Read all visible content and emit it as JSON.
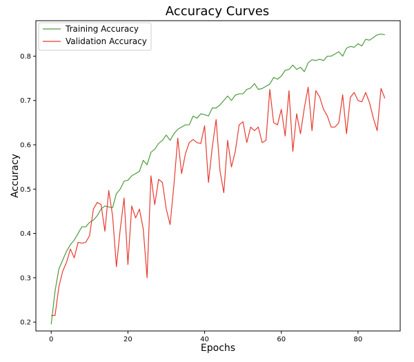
{
  "chart_data": {
    "type": "line",
    "title": "Accuracy Curves",
    "xlabel": "Epochs",
    "ylabel": "Accuracy",
    "xlim": [
      -4,
      91
    ],
    "ylim": [
      0.18,
      0.88
    ],
    "x_ticks": [
      0,
      20,
      40,
      60,
      80
    ],
    "y_ticks": [
      0.2,
      0.3,
      0.4,
      0.5,
      0.6,
      0.7,
      0.8
    ],
    "grid": false,
    "legend_position": "top-left",
    "series": [
      {
        "name": "Training Accuracy",
        "color": "#4c9a3c",
        "x": [
          0,
          1,
          2,
          3,
          4,
          5,
          6,
          7,
          8,
          9,
          10,
          11,
          12,
          13,
          14,
          15,
          16,
          17,
          18,
          19,
          20,
          21,
          22,
          23,
          24,
          25,
          26,
          27,
          28,
          29,
          30,
          31,
          32,
          33,
          34,
          35,
          36,
          37,
          38,
          39,
          40,
          41,
          42,
          43,
          44,
          45,
          46,
          47,
          48,
          49,
          50,
          51,
          52,
          53,
          54,
          55,
          56,
          57,
          58,
          59,
          60,
          61,
          62,
          63,
          64,
          65,
          66,
          67,
          68,
          69,
          70,
          71,
          72,
          73,
          74,
          75,
          76,
          77,
          78,
          79,
          80,
          81,
          82,
          83,
          84,
          85,
          86,
          87
        ],
        "values": [
          0.195,
          0.27,
          0.32,
          0.34,
          0.36,
          0.375,
          0.385,
          0.4,
          0.415,
          0.415,
          0.425,
          0.43,
          0.44,
          0.455,
          0.462,
          0.46,
          0.458,
          0.49,
          0.5,
          0.518,
          0.52,
          0.53,
          0.535,
          0.54,
          0.565,
          0.555,
          0.583,
          0.59,
          0.603,
          0.61,
          0.622,
          0.61,
          0.625,
          0.635,
          0.64,
          0.645,
          0.645,
          0.665,
          0.66,
          0.67,
          0.668,
          0.665,
          0.683,
          0.683,
          0.69,
          0.7,
          0.71,
          0.7,
          0.712,
          0.715,
          0.715,
          0.725,
          0.728,
          0.738,
          0.725,
          0.727,
          0.732,
          0.737,
          0.752,
          0.748,
          0.755,
          0.768,
          0.77,
          0.78,
          0.77,
          0.775,
          0.765,
          0.785,
          0.792,
          0.79,
          0.793,
          0.79,
          0.8,
          0.8,
          0.805,
          0.81,
          0.8,
          0.818,
          0.822,
          0.82,
          0.828,
          0.823,
          0.838,
          0.836,
          0.842,
          0.848,
          0.85,
          0.848
        ]
      },
      {
        "name": "Validation Accuracy",
        "color": "#e8392f",
        "x": [
          0,
          1,
          2,
          3,
          4,
          5,
          6,
          7,
          8,
          9,
          10,
          11,
          12,
          13,
          14,
          15,
          16,
          17,
          18,
          19,
          20,
          21,
          22,
          23,
          24,
          25,
          26,
          27,
          28,
          29,
          30,
          31,
          32,
          33,
          34,
          35,
          36,
          37,
          38,
          39,
          40,
          41,
          42,
          43,
          44,
          45,
          46,
          47,
          48,
          49,
          50,
          51,
          52,
          53,
          54,
          55,
          56,
          57,
          58,
          59,
          60,
          61,
          62,
          63,
          64,
          65,
          66,
          67,
          68,
          69,
          70,
          71,
          72,
          73,
          74,
          75,
          76,
          77,
          78,
          79,
          80,
          81,
          82,
          83,
          84,
          85,
          86,
          87
        ],
        "values": [
          0.215,
          0.215,
          0.28,
          0.315,
          0.335,
          0.365,
          0.345,
          0.38,
          0.378,
          0.38,
          0.395,
          0.455,
          0.47,
          0.465,
          0.405,
          0.497,
          0.44,
          0.325,
          0.41,
          0.48,
          0.33,
          0.462,
          0.435,
          0.455,
          0.41,
          0.3,
          0.53,
          0.465,
          0.522,
          0.515,
          0.455,
          0.42,
          0.51,
          0.615,
          0.535,
          0.58,
          0.605,
          0.612,
          0.605,
          0.603,
          0.643,
          0.515,
          0.595,
          0.657,
          0.542,
          0.492,
          0.61,
          0.55,
          0.585,
          0.645,
          0.652,
          0.605,
          0.64,
          0.632,
          0.64,
          0.605,
          0.61,
          0.725,
          0.65,
          0.645,
          0.68,
          0.62,
          0.722,
          0.585,
          0.67,
          0.625,
          0.683,
          0.73,
          0.632,
          0.722,
          0.708,
          0.68,
          0.665,
          0.64,
          0.64,
          0.65,
          0.713,
          0.625,
          0.707,
          0.718,
          0.7,
          0.697,
          0.718,
          0.695,
          0.66,
          0.632,
          0.727,
          0.705
        ]
      }
    ]
  }
}
